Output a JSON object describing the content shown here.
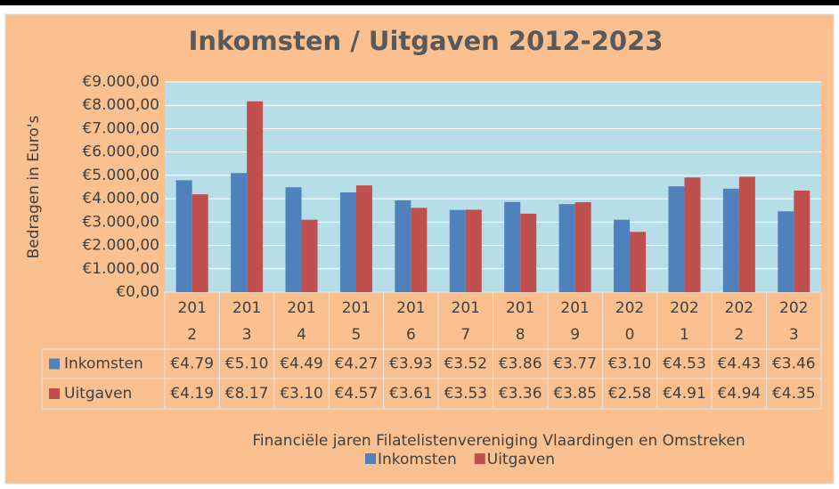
{
  "chart_data": {
    "type": "bar",
    "title": "Inkomsten / Uitgaven 2012-2023",
    "y_label": "Bedragen in Euro's",
    "x_label": "Financiële jaren Filatelistenvereniging Vlaardingen en Omstreken",
    "categories": [
      "2012",
      "2013",
      "2014",
      "2015",
      "2016",
      "2017",
      "2018",
      "2019",
      "2020",
      "2021",
      "2022",
      "2023"
    ],
    "series": [
      {
        "name": "Inkomsten",
        "color": "#4f81bd",
        "values": [
          4790,
          5100,
          4490,
          4270,
          3930,
          3520,
          3860,
          3770,
          3100,
          4530,
          4430,
          3460
        ],
        "value_labels": [
          "€4.79",
          "€5.10",
          "€4.49",
          "€4.27",
          "€3.93",
          "€3.52",
          "€3.86",
          "€3.77",
          "€3.10",
          "€4.53",
          "€4.43",
          "€3.46"
        ]
      },
      {
        "name": "Uitgaven",
        "color": "#c0504d",
        "values": [
          4190,
          8170,
          3100,
          4570,
          3610,
          3530,
          3360,
          3850,
          2580,
          4910,
          4940,
          4350
        ],
        "value_labels": [
          "€4.19",
          "€8.17",
          "€3.10",
          "€4.57",
          "€3.61",
          "€3.53",
          "€3.36",
          "€3.85",
          "€2.58",
          "€4.91",
          "€4.94",
          "€4.35"
        ]
      }
    ],
    "ylim": [
      0,
      9000
    ],
    "yticks": [
      {
        "value": 0,
        "label": "€0,00"
      },
      {
        "value": 1000,
        "label": "€1.000,00"
      },
      {
        "value": 2000,
        "label": "€2.000,00"
      },
      {
        "value": 3000,
        "label": "€3.000,00"
      },
      {
        "value": 4000,
        "label": "€4.000,00"
      },
      {
        "value": 5000,
        "label": "€5.000,00"
      },
      {
        "value": 6000,
        "label": "€6.000,00"
      },
      {
        "value": 7000,
        "label": "€7.000,00"
      },
      {
        "value": 8000,
        "label": "€8.000,00"
      },
      {
        "value": 9000,
        "label": "€9.000,00"
      }
    ],
    "grid": true,
    "legend": "bottom"
  }
}
